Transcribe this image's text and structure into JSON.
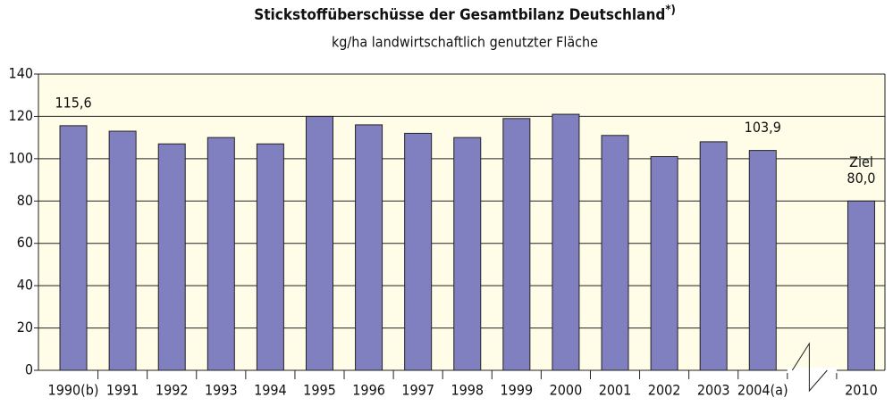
{
  "chart_data": {
    "type": "bar",
    "title": "Stickstoffüberschüsse der Gesamtbilanz Deutschland",
    "title_note": "*)",
    "subtitle": "kg/ha landwirtschaftlich genutzter Fläche",
    "categories": [
      "1990(b)",
      "1991",
      "1992",
      "1993",
      "1994",
      "1995",
      "1996",
      "1997",
      "1998",
      "1999",
      "2000",
      "2001",
      "2002",
      "2003",
      "2004(a)",
      null,
      "2010"
    ],
    "values": [
      115.6,
      113,
      107,
      110,
      107,
      120,
      116,
      112,
      110,
      119,
      121,
      111,
      101,
      108,
      103.9,
      null,
      80
    ],
    "value_labels": [
      "115,6",
      null,
      null,
      null,
      null,
      null,
      null,
      null,
      null,
      null,
      null,
      null,
      null,
      null,
      "103,9",
      null,
      "80,0"
    ],
    "annotations": [
      {
        "text": "Ziel",
        "category": "2010"
      }
    ],
    "color": "#8080c0",
    "ylim": [
      0,
      140
    ],
    "yticks": [
      0,
      20,
      40,
      60,
      80,
      100,
      120,
      140
    ],
    "grid": true
  }
}
